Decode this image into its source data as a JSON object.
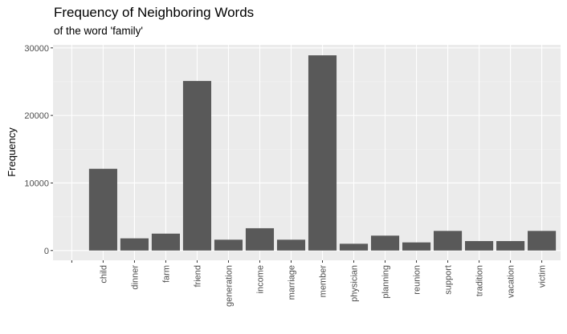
{
  "chart_data": {
    "type": "bar",
    "title": "Frequency of Neighboring Words",
    "subtitle": "of the word 'family'",
    "xlabel": "",
    "ylabel": "Frequency",
    "categories": [
      "",
      "child",
      "dinner",
      "farm",
      "friend",
      "generation",
      "income",
      "marriage",
      "member",
      "physician",
      "planning",
      "reunion",
      "support",
      "tradition",
      "vacation",
      "victim"
    ],
    "values": [
      0,
      12100,
      1800,
      2500,
      25100,
      1600,
      3300,
      1600,
      28900,
      1000,
      2200,
      1200,
      2900,
      1400,
      1400,
      2900
    ],
    "yticks": [
      0,
      10000,
      20000,
      30000
    ],
    "ylim": [
      -1450,
      30450
    ],
    "grid": true,
    "colors": {
      "bar": "#595959",
      "panel": "#ebebeb",
      "grid_major": "#ffffff",
      "grid_minor": "#f4f4f4"
    }
  }
}
